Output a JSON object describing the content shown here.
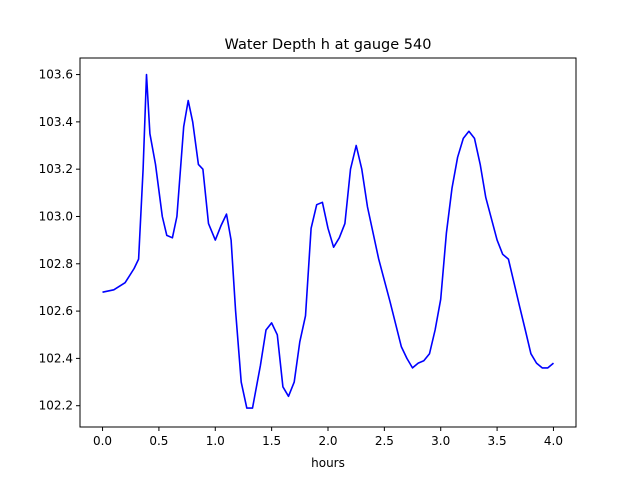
{
  "chart_data": {
    "type": "line",
    "title": "Water Depth h at gauge 540",
    "xlabel": "hours",
    "ylabel": "",
    "xlim": [
      -0.2,
      4.2
    ],
    "ylim": [
      102.11,
      103.67
    ],
    "xticks": [
      0.0,
      0.5,
      1.0,
      1.5,
      2.0,
      2.5,
      3.0,
      3.5,
      4.0
    ],
    "xtick_labels": [
      "0.0",
      "0.5",
      "1.0",
      "1.5",
      "2.0",
      "2.5",
      "3.0",
      "3.5",
      "4.0"
    ],
    "yticks": [
      102.2,
      102.4,
      102.6,
      102.8,
      103.0,
      103.2,
      103.4,
      103.6
    ],
    "ytick_labels": [
      "102.2",
      "102.4",
      "102.6",
      "102.8",
      "103.0",
      "103.2",
      "103.4",
      "103.6"
    ],
    "grid": false,
    "series": [
      {
        "name": "h",
        "color": "#0000ff",
        "x": [
          0,
          0.1,
          0.2,
          0.28,
          0.32,
          0.36,
          0.39,
          0.42,
          0.47,
          0.53,
          0.57,
          0.62,
          0.66,
          0.72,
          0.76,
          0.8,
          0.85,
          0.89,
          0.94,
          1.0,
          1.05,
          1.1,
          1.14,
          1.18,
          1.23,
          1.28,
          1.33,
          1.4,
          1.45,
          1.5,
          1.55,
          1.6,
          1.65,
          1.7,
          1.75,
          1.8,
          1.85,
          1.9,
          1.95,
          2.0,
          2.05,
          2.1,
          2.15,
          2.2,
          2.25,
          2.3,
          2.35,
          2.45,
          2.55,
          2.65,
          2.7,
          2.75,
          2.8,
          2.85,
          2.9,
          2.95,
          3.0,
          3.05,
          3.1,
          3.15,
          3.2,
          3.25,
          3.3,
          3.35,
          3.4,
          3.5,
          3.55,
          3.6,
          3.65,
          3.7,
          3.75,
          3.8,
          3.85,
          3.9,
          3.95,
          4.0
        ],
        "y": [
          102.68,
          102.69,
          102.72,
          102.78,
          102.82,
          103.2,
          103.6,
          103.35,
          103.22,
          103.0,
          102.92,
          102.91,
          103.0,
          103.38,
          103.49,
          103.4,
          103.22,
          103.2,
          102.97,
          102.9,
          102.96,
          103.01,
          102.9,
          102.6,
          102.3,
          102.19,
          102.19,
          102.37,
          102.52,
          102.55,
          102.5,
          102.28,
          102.24,
          102.3,
          102.47,
          102.58,
          102.95,
          103.05,
          103.06,
          102.95,
          102.87,
          102.91,
          102.97,
          103.2,
          103.3,
          103.2,
          103.04,
          102.82,
          102.64,
          102.45,
          102.4,
          102.36,
          102.38,
          102.39,
          102.42,
          102.52,
          102.65,
          102.93,
          103.12,
          103.25,
          103.33,
          103.36,
          103.33,
          103.22,
          103.08,
          102.9,
          102.84,
          102.82,
          102.72,
          102.62,
          102.52,
          102.42,
          102.38,
          102.36,
          102.36,
          102.38
        ]
      }
    ]
  }
}
